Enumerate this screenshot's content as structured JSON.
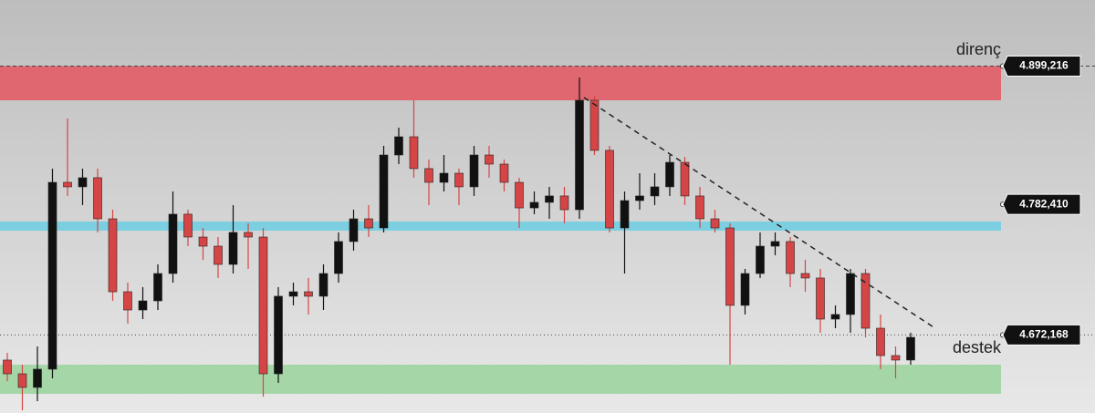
{
  "chart_data": {
    "type": "candlestick",
    "ylim": [
      4606.2,
      4955
    ],
    "up_color": "#111111",
    "down_color": "#d64545",
    "candles": {
      "open": [
        4650.9,
        4639.3,
        4627.8,
        4643.2,
        4801,
        4797.2,
        4804.9,
        4770.2,
        4708.6,
        4693.2,
        4700.9,
        4724,
        4774.1,
        4754.8,
        4747.1,
        4731.7,
        4758.7,
        4754.8,
        4639.3,
        4704.8,
        4708.6,
        4704.8,
        4724,
        4751,
        4770.2,
        4762.5,
        4824.1,
        4839.5,
        4812.6,
        4801,
        4808.7,
        4797.2,
        4824.1,
        4816.4,
        4801,
        4779.4,
        4784.1,
        4789.5,
        4777.9,
        4870.3,
        4828,
        4762.5,
        4785.6,
        4789.5,
        4797.2,
        4817.9,
        4789.5,
        4770.2,
        4762.5,
        4697.1,
        4724,
        4747.1,
        4751,
        4724,
        4720.2,
        4685.5,
        4689.4,
        4724,
        4677.8,
        4654.7,
        4650.9
      ],
      "high": [
        4657,
        4647,
        4662.4,
        4812.6,
        4854.9,
        4812.6,
        4812.6,
        4777.9,
        4716.3,
        4712.5,
        4731.7,
        4793.3,
        4777.9,
        4762.5,
        4754.8,
        4781.8,
        4766.4,
        4762.5,
        4712.5,
        4716.3,
        4720.2,
        4731.7,
        4758.7,
        4777.9,
        4781.8,
        4831.8,
        4847.2,
        4870.3,
        4820.3,
        4824.1,
        4812.6,
        4831.8,
        4831.8,
        4820.3,
        4804.9,
        4793.3,
        4797.2,
        4797.2,
        4889.6,
        4874.2,
        4831.8,
        4793.3,
        4808.7,
        4808.7,
        4824.1,
        4822.6,
        4797.2,
        4777.9,
        4766.4,
        4727.9,
        4758.7,
        4758.7,
        4754.8,
        4735.6,
        4727.9,
        4697.1,
        4727.9,
        4727.9,
        4689.4,
        4662.4,
        4674
      ],
      "low": [
        4633.1,
        4608.5,
        4616.2,
        4635.5,
        4789.5,
        4781.8,
        4758.7,
        4700.9,
        4681.7,
        4685.5,
        4693.2,
        4716.3,
        4747.1,
        4735.6,
        4720.2,
        4724,
        4727.9,
        4620.1,
        4631.6,
        4697.1,
        4689.4,
        4693.2,
        4716.3,
        4743.3,
        4754.8,
        4758.7,
        4816.4,
        4804.9,
        4781.8,
        4793.3,
        4781.8,
        4789.5,
        4804.9,
        4793.3,
        4762.5,
        4774.1,
        4770.2,
        4766.4,
        4770.2,
        4824.1,
        4758.7,
        4724,
        4777.9,
        4781.8,
        4789.5,
        4781.8,
        4762.5,
        4758.7,
        4647,
        4689.4,
        4720.2,
        4739.4,
        4712.5,
        4708.6,
        4674,
        4677.8,
        4674,
        4670.1,
        4643.2,
        4635.5,
        4647
      ],
      "close": [
        4639.3,
        4627.8,
        4643.2,
        4801,
        4797.2,
        4804.9,
        4770.2,
        4708.6,
        4693.2,
        4700.9,
        4724,
        4774.1,
        4754.8,
        4747.1,
        4731.7,
        4758.7,
        4754.8,
        4639.3,
        4704.8,
        4708.6,
        4704.8,
        4724,
        4751,
        4770.2,
        4762.5,
        4824.1,
        4839.5,
        4812.6,
        4801,
        4808.7,
        4797.2,
        4824.1,
        4816.4,
        4801,
        4779.4,
        4784.1,
        4789.5,
        4777.9,
        4870.3,
        4828,
        4762.5,
        4785.6,
        4789.5,
        4797.2,
        4817.9,
        4789.5,
        4770.2,
        4762.5,
        4697.1,
        4724,
        4747.1,
        4751,
        4724,
        4720.2,
        4685.5,
        4689.4,
        4724,
        4677.8,
        4654.7,
        4650.9,
        4670.1
      ]
    },
    "zones": [
      {
        "from": 4870.3,
        "to": 4899.2,
        "color": "#e06670"
      },
      {
        "from": 4760.2,
        "to": 4767.9,
        "color": "#7ccfe0"
      },
      {
        "from": 4622.4,
        "to": 4647,
        "color": "#a5d6a7"
      }
    ],
    "trendline": [
      4872.6,
      4677.7
    ],
    "levels": [
      {
        "name": "direnç",
        "value": 4899.216,
        "label": "4.899,216",
        "line": "dashed"
      },
      {
        "value": 4782.41,
        "label": "4.782,410"
      },
      {
        "name": "destek",
        "value": 4672.168,
        "label": "4.672,168",
        "line": "dotted"
      }
    ]
  }
}
